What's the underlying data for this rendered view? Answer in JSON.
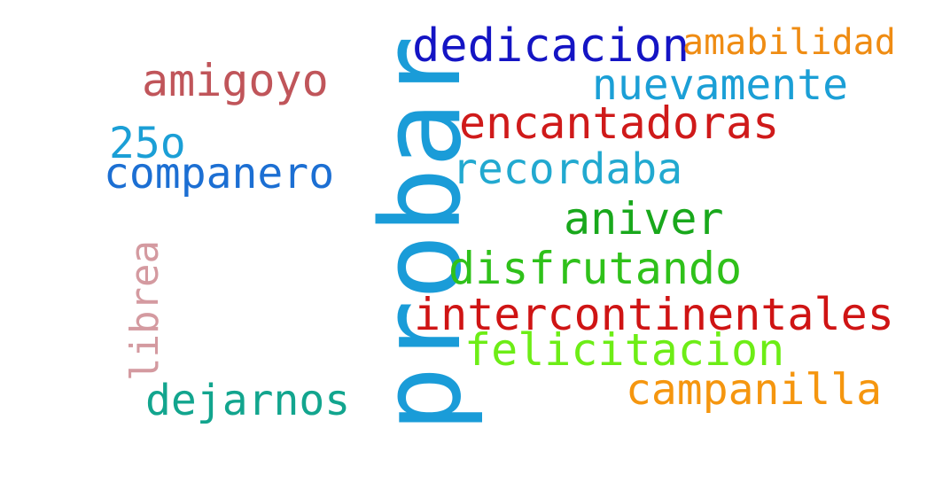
{
  "words": {
    "probar": {
      "text": "probar",
      "color": "#1a9cd8"
    },
    "dedicacion": {
      "text": "dedicacion",
      "color": "#1414c4"
    },
    "amabilidad": {
      "text": "amabilidad",
      "color": "#ef8c13"
    },
    "amigoyo": {
      "text": "amigoyo",
      "color": "#c0555a"
    },
    "nuevamente": {
      "text": "nuevamente",
      "color": "#1b9fd6"
    },
    "encantadoras": {
      "text": "encantadoras",
      "color": "#cf1a1a"
    },
    "twentyfive_o": {
      "text": "25o",
      "color": "#1b9fd6"
    },
    "companero": {
      "text": "companero",
      "color": "#1c6fd3"
    },
    "recordaba": {
      "text": "recordaba",
      "color": "#22a9d0"
    },
    "aniver": {
      "text": "aniver",
      "color": "#19a81c"
    },
    "disfrutando": {
      "text": "disfrutando",
      "color": "#2fc11a"
    },
    "librea": {
      "text": "librea",
      "color": "#d49aa0"
    },
    "intercontinentales": {
      "text": "intercontinentales",
      "color": "#cf1414"
    },
    "felicitacion": {
      "text": "felicitacion",
      "color": "#6ded16"
    },
    "campanilla": {
      "text": "campanilla",
      "color": "#f5960f"
    },
    "dejarnos": {
      "text": "dejarnos",
      "color": "#12a58e"
    }
  }
}
